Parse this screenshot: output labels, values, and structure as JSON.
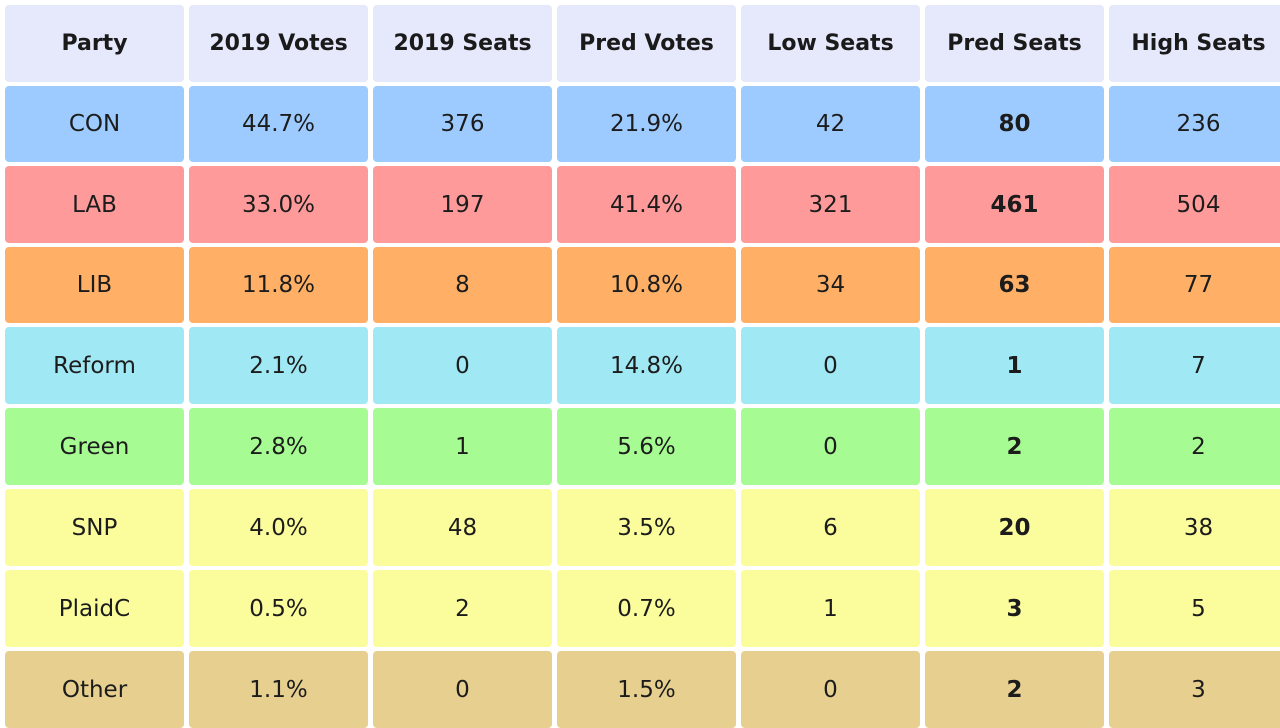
{
  "chart_data": {
    "type": "table",
    "columns": [
      "Party",
      "2019 Votes",
      "2019 Seats",
      "Pred Votes",
      "Low Seats",
      "Pred Seats",
      "High Seats"
    ],
    "rows": [
      {
        "party": "CON",
        "color": "#9dcbff",
        "cells": [
          "CON",
          "44.7%",
          "376",
          "21.9%",
          "42",
          "80",
          "236"
        ]
      },
      {
        "party": "LAB",
        "color": "#ff9a9a",
        "cells": [
          "LAB",
          "33.0%",
          "197",
          "41.4%",
          "321",
          "461",
          "504"
        ]
      },
      {
        "party": "LIB",
        "color": "#ffb066",
        "cells": [
          "LIB",
          "11.8%",
          "8",
          "10.8%",
          "34",
          "63",
          "77"
        ]
      },
      {
        "party": "Reform",
        "color": "#a0e8f4",
        "cells": [
          "Reform",
          "2.1%",
          "0",
          "14.8%",
          "0",
          "1",
          "7"
        ]
      },
      {
        "party": "Green",
        "color": "#a6fc92",
        "cells": [
          "Green",
          "2.8%",
          "1",
          "5.6%",
          "0",
          "2",
          "2"
        ]
      },
      {
        "party": "SNP",
        "color": "#fbfc9c",
        "cells": [
          "SNP",
          "4.0%",
          "48",
          "3.5%",
          "6",
          "20",
          "38"
        ]
      },
      {
        "party": "PlaidC",
        "color": "#fbfc9c",
        "cells": [
          "PlaidC",
          "0.5%",
          "2",
          "0.7%",
          "1",
          "3",
          "5"
        ]
      },
      {
        "party": "Other",
        "color": "#e6cf8f",
        "cells": [
          "Other",
          "1.1%",
          "0",
          "1.5%",
          "0",
          "2",
          "3"
        ]
      }
    ],
    "header_color": "#e6e8fb",
    "bold_column": 5
  }
}
